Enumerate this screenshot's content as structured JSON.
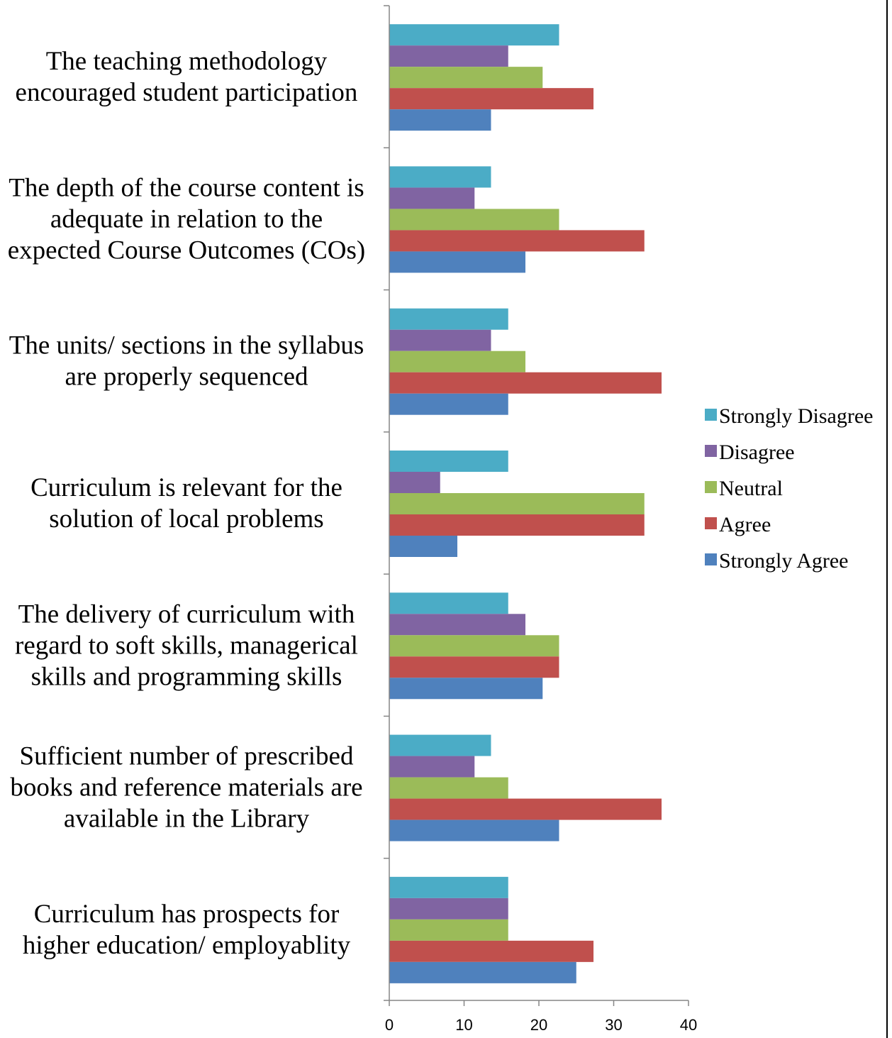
{
  "chart_data": {
    "type": "bar",
    "orientation": "horizontal",
    "categories": [
      [
        "The teaching methodology",
        "encouraged student participation"
      ],
      [
        "The depth of the course content is",
        "adequate in relation to the",
        "expected Course Outcomes (COs)"
      ],
      [
        "The units/ sections in the syllabus",
        "are properly sequenced"
      ],
      [
        "Curriculum is relevant for the",
        "solution of local problems"
      ],
      [
        "The delivery of curriculum with",
        "regard to soft skills, managerical",
        "skills and programming skills"
      ],
      [
        "Sufficient number of prescribed",
        "books and reference materials are",
        "available in the Library"
      ],
      [
        "Curriculum has prospects for",
        "higher education/ employablity"
      ]
    ],
    "series": [
      {
        "name": "Strongly Disagree",
        "color": "#4BACC6",
        "values": [
          22.7,
          13.6,
          15.9,
          15.9,
          15.9,
          13.6,
          15.9
        ]
      },
      {
        "name": "Disagree",
        "color": "#8064A2",
        "values": [
          15.9,
          11.4,
          13.6,
          6.8,
          18.2,
          11.4,
          15.9
        ]
      },
      {
        "name": "Neutral",
        "color": "#9BBB59",
        "values": [
          20.5,
          22.7,
          18.2,
          34.1,
          22.7,
          15.9,
          15.9
        ]
      },
      {
        "name": "Agree",
        "color": "#C0504D",
        "values": [
          27.3,
          34.1,
          36.4,
          34.1,
          22.7,
          36.4,
          27.3
        ]
      },
      {
        "name": "Strongly Agree",
        "color": "#4F81BD",
        "values": [
          13.6,
          18.2,
          15.9,
          9.1,
          20.5,
          22.7,
          25.0
        ]
      }
    ],
    "x_ticks": [
      "0",
      "10",
      "20",
      "30",
      "40"
    ],
    "xlim": [
      0,
      40
    ],
    "legend": {
      "position": "right",
      "order": [
        "Strongly Disagree",
        "Disagree",
        "Neutral",
        "Agree",
        "Strongly Agree"
      ]
    },
    "grid": false,
    "title": "",
    "xlabel": "",
    "ylabel": ""
  }
}
